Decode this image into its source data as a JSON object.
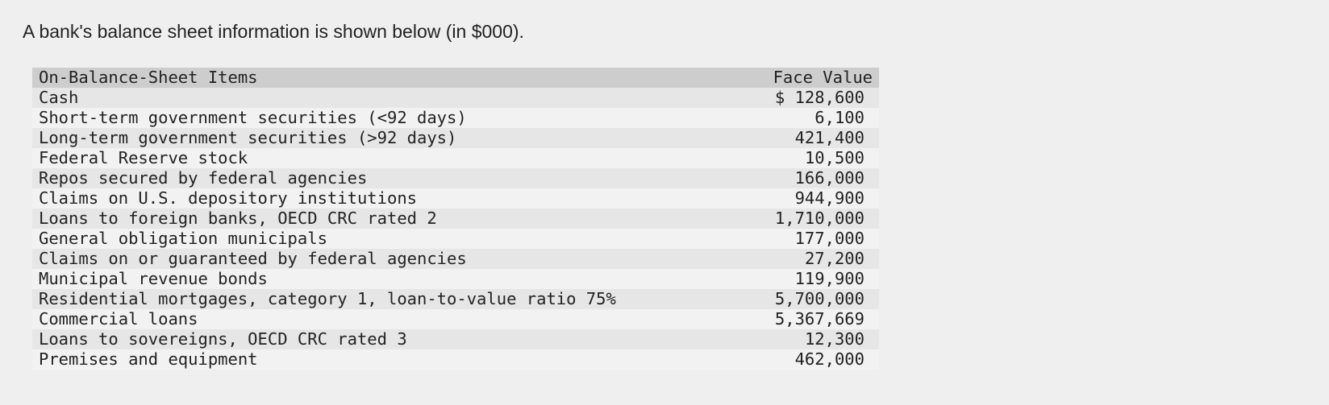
{
  "header": {
    "title": "A bank's balance sheet information is shown below (in $000)."
  },
  "table": {
    "columns": [
      "On-Balance-Sheet Items",
      "Face Value"
    ],
    "rows": [
      [
        "Cash",
        "$ 128,600"
      ],
      [
        "Short-term government securities (<92 days)",
        "6,100"
      ],
      [
        "Long-term government securities (>92 days)",
        "421,400"
      ],
      [
        "Federal Reserve stock",
        "10,500"
      ],
      [
        "Repos secured by federal agencies",
        "166,000"
      ],
      [
        "Claims on U.S. depository institutions",
        "944,900"
      ],
      [
        "Loans to foreign banks, OECD CRC rated 2",
        "1,710,000"
      ],
      [
        "General obligation municipals",
        "177,000"
      ],
      [
        "Claims on or guaranteed by federal agencies",
        "27,200"
      ],
      [
        "Municipal revenue bonds",
        "119,900"
      ],
      [
        "Residential mortgages, category 1, loan-to-value ratio 75%",
        "5,700,000"
      ],
      [
        "Commercial loans",
        "5,367,669"
      ],
      [
        "Loans to sovereigns, OECD CRC rated 3",
        "12,300"
      ],
      [
        "Premises and equipment",
        "462,000"
      ]
    ]
  }
}
